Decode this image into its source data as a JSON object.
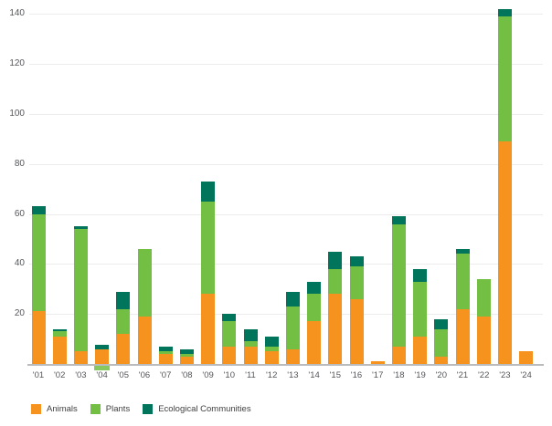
{
  "chart_data": {
    "type": "bar",
    "stacked": true,
    "title": "",
    "categories": [
      "'01",
      "'02",
      "'03",
      "'04",
      "'05",
      "'06",
      "'07",
      "'08",
      "'09",
      "'10",
      "'11",
      "'12",
      "'13",
      "'14",
      "'15",
      "'16",
      "'17",
      "'18",
      "'19",
      "'20",
      "'21",
      "'22",
      "'23",
      "'24"
    ],
    "series": [
      {
        "name": "Animals",
        "color": "#F6921E",
        "values": [
          21,
          11,
          5,
          6,
          12,
          19,
          4,
          3,
          28,
          7,
          7,
          5,
          6,
          17,
          28,
          26,
          1,
          7,
          11,
          3,
          22,
          19,
          89,
          5
        ]
      },
      {
        "name": "Plants",
        "color": "#72BF44",
        "values": [
          39,
          2,
          49,
          -2,
          10,
          27,
          1,
          1,
          37,
          10,
          2,
          2,
          17,
          11,
          10,
          13,
          0,
          49,
          22,
          11,
          22,
          15,
          50,
          0
        ]
      },
      {
        "name": "Ecological Communities",
        "color": "#00755C",
        "values": [
          3,
          1,
          1,
          1.5,
          7,
          0,
          2,
          2,
          8,
          3,
          5,
          4,
          6,
          5,
          7,
          4,
          0,
          3,
          5,
          4,
          2,
          0,
          3,
          0
        ]
      }
    ],
    "ylim": [
      0,
      145
    ],
    "yticks": [
      20,
      40,
      60,
      80,
      100,
      120,
      140
    ],
    "grid": true,
    "legend_position": "bottom-left"
  },
  "colors": {
    "gridline": "#ececec",
    "axis_baseline": "#b9bbbd",
    "tick_text": "#55565a",
    "legend_text": "#414042"
  }
}
